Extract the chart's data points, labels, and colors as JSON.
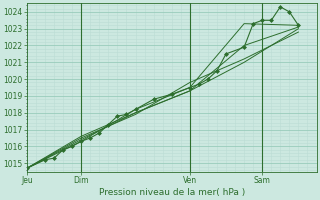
{
  "background_color": "#cce8e0",
  "grid_major_color": "#99ccbb",
  "grid_minor_color": "#bbddd5",
  "line_color": "#2d6e2d",
  "marker_color": "#2d6e2d",
  "title": "Pression niveau de la mer( hPa )",
  "ylim": [
    1014.5,
    1024.5
  ],
  "yticks": [
    1015,
    1016,
    1017,
    1018,
    1019,
    1020,
    1021,
    1022,
    1023,
    1024
  ],
  "day_labels": [
    "Jeu",
    "Dim",
    "Ven",
    "Sam"
  ],
  "day_positions": [
    0,
    36,
    108,
    156
  ],
  "xlim": [
    0,
    192
  ],
  "vline_positions": [
    36,
    108,
    156
  ],
  "lines": [
    {
      "x": [
        0,
        12,
        18,
        24,
        30,
        36,
        42,
        48,
        54,
        60,
        66,
        72,
        84,
        96,
        108,
        114,
        120,
        126,
        132,
        144,
        150,
        156,
        162,
        168,
        174,
        180
      ],
      "y": [
        1014.7,
        1015.2,
        1015.3,
        1015.8,
        1016.0,
        1016.3,
        1016.5,
        1016.8,
        1017.3,
        1017.8,
        1017.9,
        1018.2,
        1018.8,
        1019.1,
        1019.5,
        1019.7,
        1020.0,
        1020.5,
        1021.5,
        1021.9,
        1023.3,
        1023.5,
        1023.5,
        1024.3,
        1024.0,
        1023.2
      ],
      "with_markers": true
    },
    {
      "x": [
        0,
        36,
        72,
        108,
        144,
        180
      ],
      "y": [
        1014.7,
        1016.3,
        1018.2,
        1019.5,
        1023.3,
        1023.2
      ],
      "with_markers": false
    },
    {
      "x": [
        0,
        36,
        72,
        108,
        144,
        180
      ],
      "y": [
        1014.7,
        1016.6,
        1018.0,
        1019.3,
        1022.0,
        1023.1
      ],
      "with_markers": false
    },
    {
      "x": [
        0,
        36,
        72,
        108,
        144,
        180
      ],
      "y": [
        1014.7,
        1016.5,
        1017.9,
        1019.8,
        1021.2,
        1022.8
      ],
      "with_markers": false
    },
    {
      "x": [
        0,
        36,
        72,
        108,
        144,
        180
      ],
      "y": [
        1014.7,
        1016.4,
        1018.0,
        1019.3,
        1021.0,
        1023.0
      ],
      "with_markers": false
    }
  ],
  "figsize": [
    3.2,
    2.0
  ],
  "dpi": 100
}
